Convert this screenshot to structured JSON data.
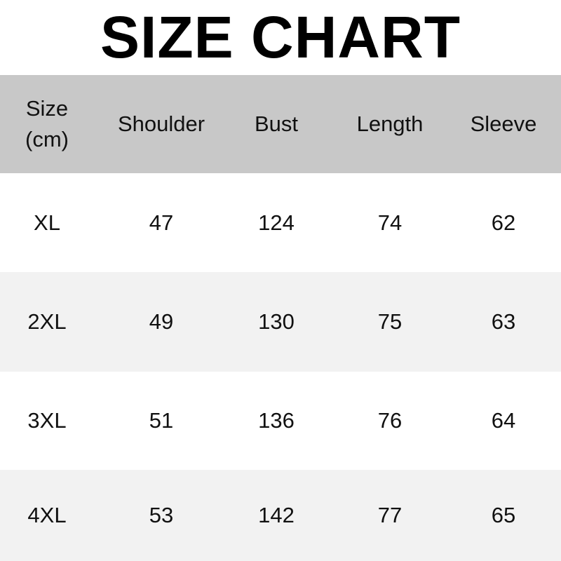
{
  "title": "SIZE CHART",
  "table": {
    "headers": [
      "Size",
      "(cm)",
      "Shoulder",
      "Bust",
      "Length",
      "Sleeve"
    ],
    "rows": [
      [
        "XL",
        "47",
        "124",
        "74",
        "62"
      ],
      [
        "2XL",
        "49",
        "130",
        "75",
        "63"
      ],
      [
        "3XL",
        "51",
        "136",
        "76",
        "64"
      ],
      [
        "4XL",
        "53",
        "142",
        "77",
        "65"
      ]
    ]
  },
  "colors": {
    "header_bg": "#c8c8c8",
    "stripe_bg": "#f2f2f2"
  },
  "chart_data": {
    "type": "table",
    "title": "SIZE CHART",
    "columns": [
      "Size (cm)",
      "Shoulder",
      "Bust",
      "Length",
      "Sleeve"
    ],
    "rows": [
      [
        "XL",
        47,
        124,
        74,
        62
      ],
      [
        "2XL",
        49,
        130,
        75,
        63
      ],
      [
        "3XL",
        51,
        136,
        76,
        64
      ],
      [
        "4XL",
        53,
        142,
        77,
        65
      ]
    ]
  }
}
